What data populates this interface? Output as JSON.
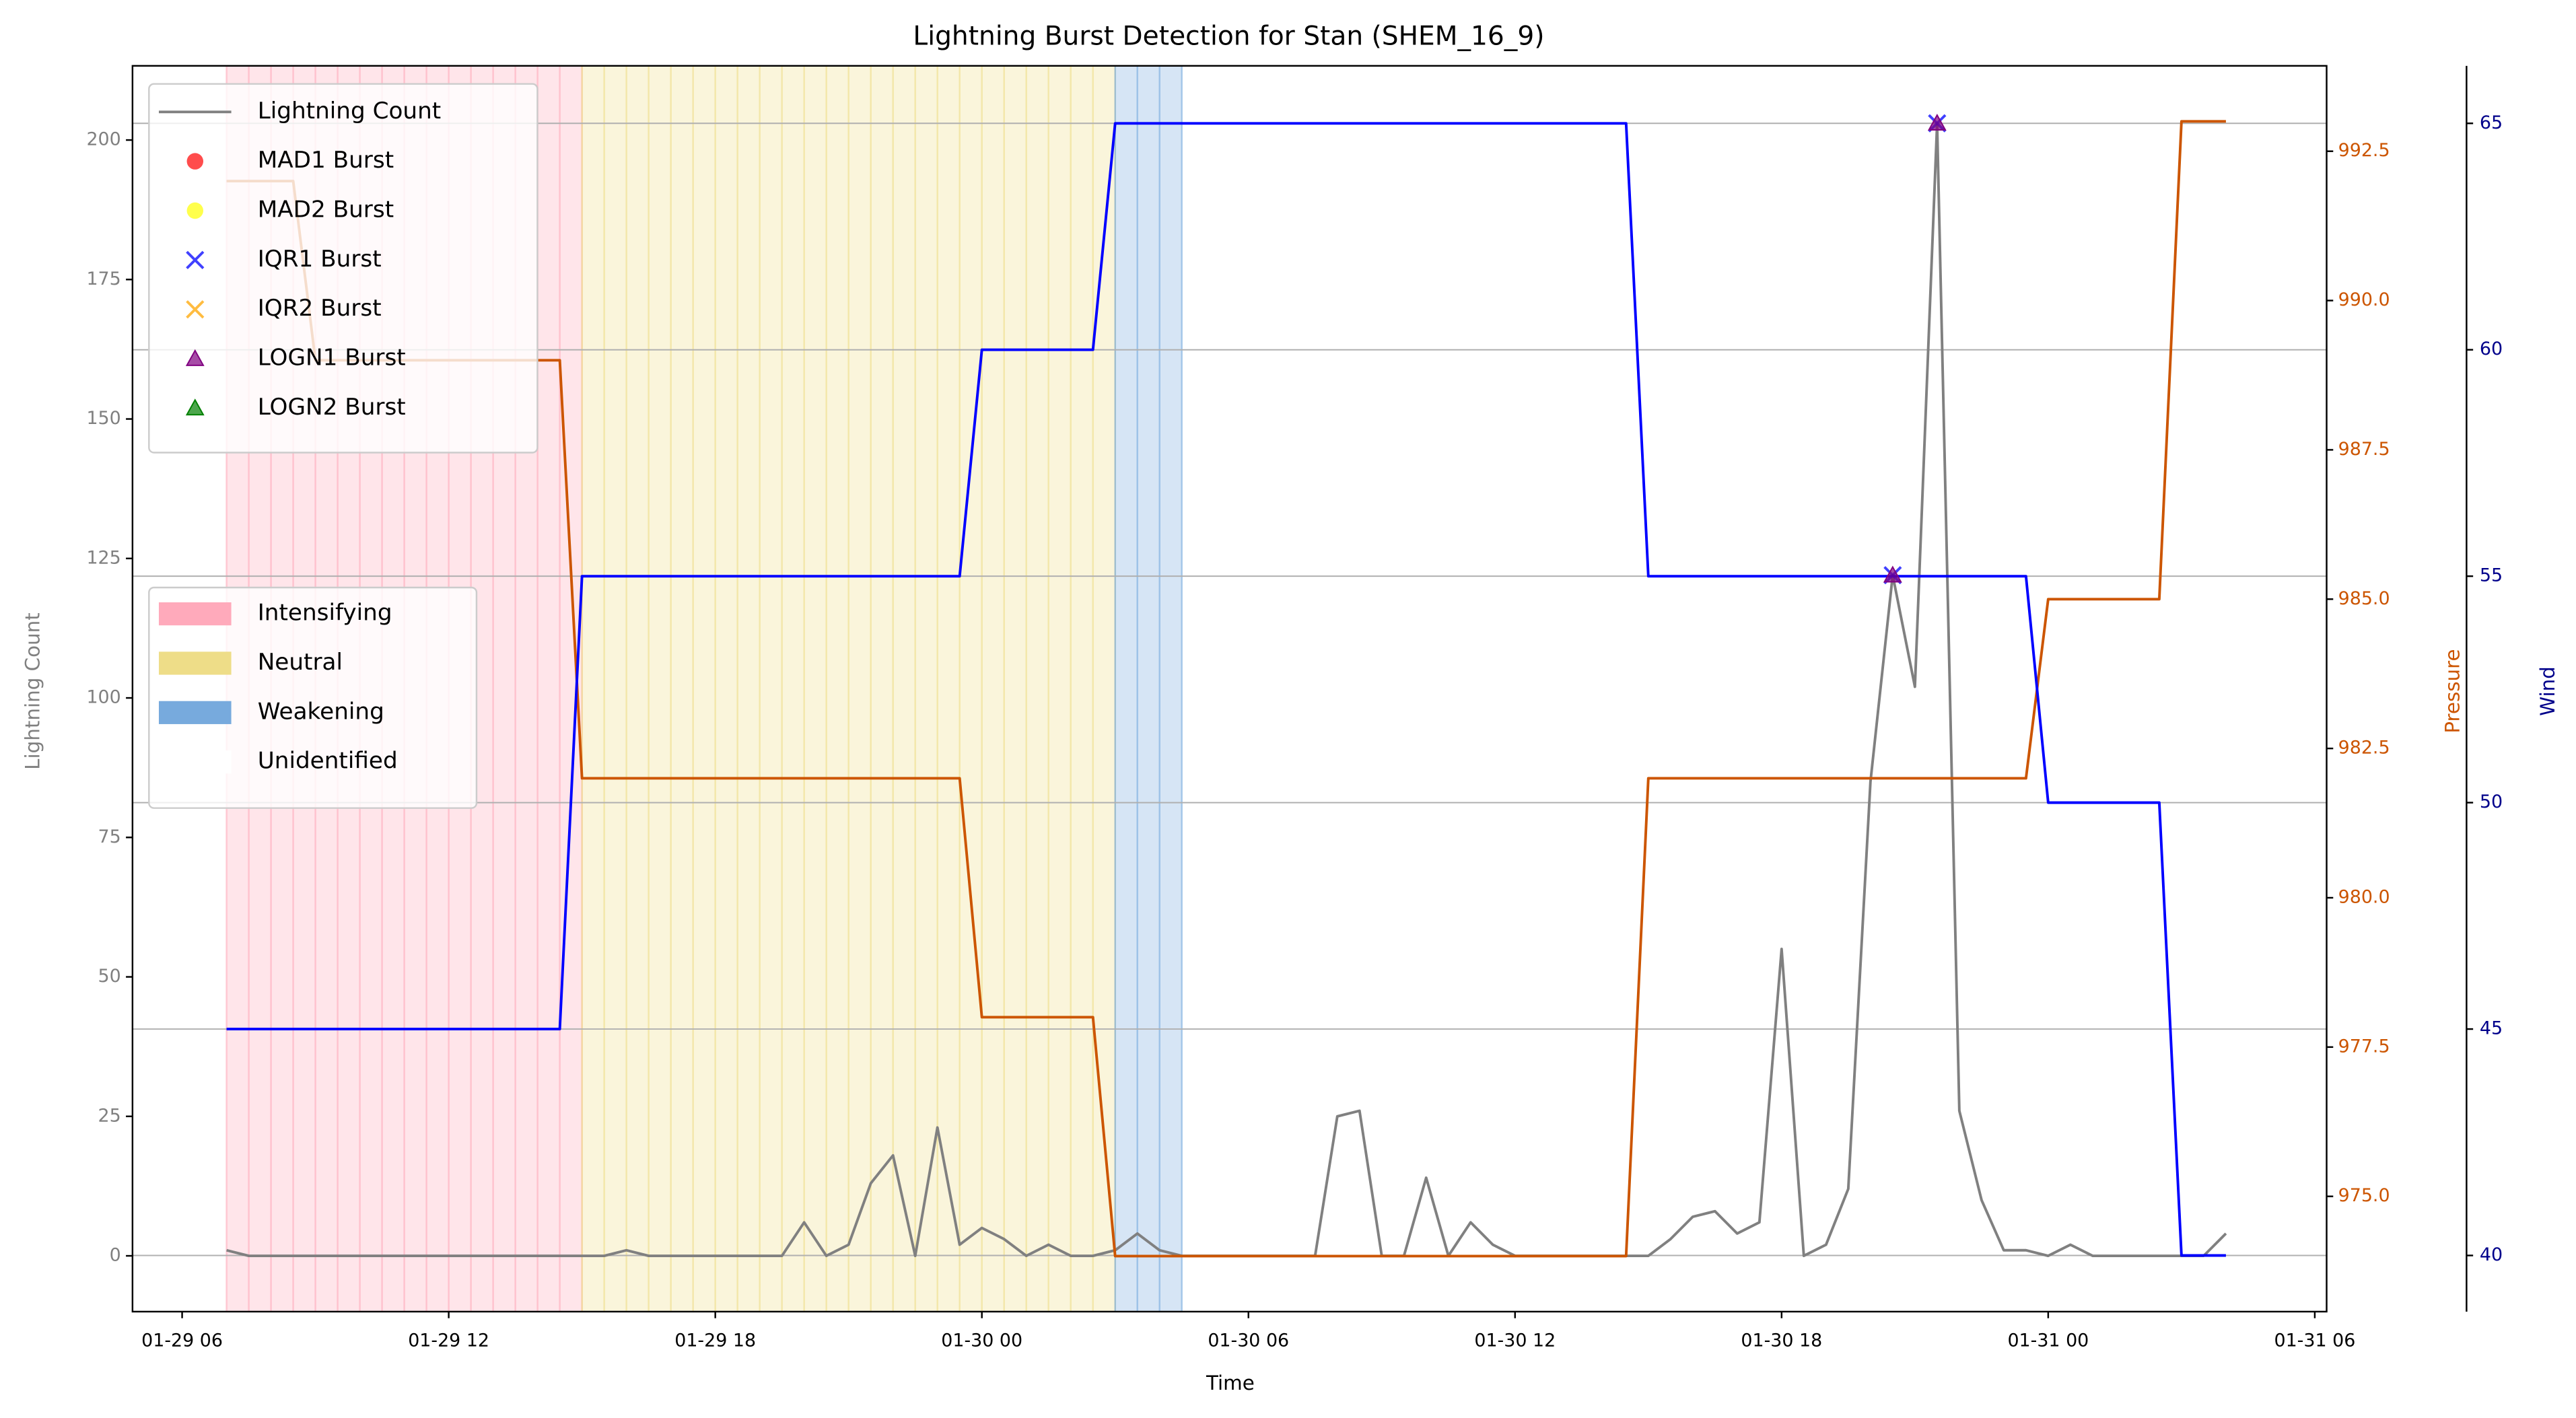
{
  "chart_data": {
    "type": "line",
    "title": "Lightning Burst Detection for Stan (SHEM_16_9)",
    "xlabel": "Time",
    "ylabel": "Lightning Count",
    "y2label": "Pressure",
    "y3label": "Wind",
    "x": [
      "01-29 07:00",
      "01-29 07:30",
      "01-29 08:00",
      "01-29 08:30",
      "01-29 09:00",
      "01-29 09:30",
      "01-29 10:00",
      "01-29 10:30",
      "01-29 11:00",
      "01-29 11:30",
      "01-29 12:00",
      "01-29 12:30",
      "01-29 13:00",
      "01-29 13:30",
      "01-29 14:00",
      "01-29 14:30",
      "01-29 15:00",
      "01-29 15:30",
      "01-29 16:00",
      "01-29 16:30",
      "01-29 17:00",
      "01-29 17:30",
      "01-29 18:00",
      "01-29 18:30",
      "01-29 19:00",
      "01-29 19:30",
      "01-29 20:00",
      "01-29 20:30",
      "01-29 21:00",
      "01-29 21:30",
      "01-29 22:00",
      "01-29 22:30",
      "01-29 23:00",
      "01-29 23:30",
      "01-30 00:00",
      "01-30 00:30",
      "01-30 01:00",
      "01-30 01:30",
      "01-30 02:00",
      "01-30 02:30",
      "01-30 03:00",
      "01-30 03:30",
      "01-30 04:00",
      "01-30 04:30",
      "01-30 05:00",
      "01-30 05:30",
      "01-30 06:00",
      "01-30 06:30",
      "01-30 07:00",
      "01-30 07:30",
      "01-30 08:00",
      "01-30 08:30",
      "01-30 09:00",
      "01-30 09:30",
      "01-30 10:00",
      "01-30 10:30",
      "01-30 11:00",
      "01-30 11:30",
      "01-30 12:00",
      "01-30 12:30",
      "01-30 13:00",
      "01-30 13:30",
      "01-30 14:00",
      "01-30 14:30",
      "01-30 15:00",
      "01-30 15:30",
      "01-30 16:00",
      "01-30 16:30",
      "01-30 17:00",
      "01-30 17:30",
      "01-30 18:00",
      "01-30 18:30",
      "01-30 19:00",
      "01-30 19:30",
      "01-30 20:00",
      "01-30 20:30",
      "01-30 21:00",
      "01-30 21:30",
      "01-30 22:00",
      "01-30 22:30",
      "01-30 23:00",
      "01-30 23:30",
      "01-31 00:00",
      "01-31 00:30",
      "01-31 01:00",
      "01-31 01:30",
      "01-31 02:00",
      "01-31 02:30",
      "01-31 03:00",
      "01-31 03:30",
      "01-31 04:00"
    ],
    "series": [
      {
        "name": "Lightning Count",
        "color": "#808080",
        "values": [
          1,
          0,
          0,
          0,
          0,
          0,
          0,
          0,
          0,
          0,
          0,
          0,
          0,
          0,
          0,
          0,
          0,
          0,
          1,
          0,
          0,
          0,
          0,
          0,
          0,
          0,
          6,
          0,
          2,
          13,
          18,
          0,
          23,
          2,
          5,
          3,
          0,
          2,
          0,
          0,
          1,
          4,
          1,
          0,
          0,
          0,
          0,
          0,
          0,
          0,
          25,
          26,
          0,
          0,
          14,
          0,
          6,
          2,
          0,
          0,
          0,
          0,
          0,
          0,
          0,
          3,
          7,
          8,
          4,
          6,
          55,
          0,
          2,
          12,
          85,
          122,
          102,
          203,
          26,
          10,
          1,
          1,
          0,
          2,
          0,
          0,
          0,
          0,
          0,
          0,
          4
        ]
      }
    ],
    "pressure": {
      "color": "#cc5500",
      "values": [
        992,
        992,
        992,
        992,
        989,
        989,
        989,
        989,
        989,
        989,
        989,
        989,
        989,
        989,
        989,
        989,
        982,
        982,
        982,
        982,
        982,
        982,
        982,
        982,
        982,
        982,
        982,
        982,
        982,
        982,
        982,
        982,
        982,
        982,
        978,
        978,
        978,
        978,
        978,
        978,
        974,
        974,
        974,
        974,
        974,
        974,
        974,
        974,
        974,
        974,
        974,
        974,
        974,
        974,
        974,
        974,
        974,
        974,
        974,
        974,
        974,
        974,
        974,
        974,
        982,
        982,
        982,
        982,
        982,
        982,
        982,
        982,
        982,
        982,
        982,
        982,
        982,
        982,
        982,
        982,
        982,
        982,
        985,
        985,
        985,
        985,
        985,
        985,
        993,
        993,
        993
      ]
    },
    "wind": {
      "color": "#0000ff",
      "axis_color": "#00008b",
      "values": [
        45,
        45,
        45,
        45,
        45,
        45,
        45,
        45,
        45,
        45,
        45,
        45,
        45,
        45,
        45,
        45,
        55,
        55,
        55,
        55,
        55,
        55,
        55,
        55,
        55,
        55,
        55,
        55,
        55,
        55,
        55,
        55,
        55,
        55,
        60,
        60,
        60,
        60,
        60,
        60,
        65,
        65,
        65,
        65,
        65,
        65,
        65,
        65,
        65,
        65,
        65,
        65,
        65,
        65,
        65,
        65,
        65,
        65,
        65,
        65,
        65,
        65,
        65,
        65,
        55,
        55,
        55,
        55,
        55,
        55,
        55,
        55,
        55,
        55,
        55,
        55,
        55,
        55,
        55,
        55,
        55,
        55,
        50,
        50,
        50,
        50,
        50,
        50,
        40,
        40,
        40
      ]
    },
    "bursts": [
      {
        "name": "MAD1 Burst",
        "color": "#ff0000",
        "marker": "circle",
        "x": [],
        "values": []
      },
      {
        "name": "MAD2 Burst",
        "color": "#ffff00",
        "marker": "circle",
        "x": [],
        "values": []
      },
      {
        "name": "IQR1 Burst",
        "color": "#0000ff",
        "marker": "x",
        "x": [
          "01-30 20:30",
          "01-30 21:30"
        ],
        "values": [
          122,
          203
        ]
      },
      {
        "name": "IQR2 Burst",
        "color": "#ffa500",
        "marker": "x",
        "x": [],
        "values": []
      },
      {
        "name": "LOGN1 Burst",
        "color": "#800080",
        "marker": "triangle",
        "x": [
          "01-30 20:30",
          "01-30 21:30"
        ],
        "values": [
          122,
          203
        ]
      },
      {
        "name": "LOGN2 Burst",
        "color": "#008000",
        "marker": "triangle",
        "x": [],
        "values": []
      }
    ],
    "phases": [
      {
        "name": "Intensifying",
        "color": "#ffaabb",
        "start": "01-29 07:00",
        "end": "01-29 15:00"
      },
      {
        "name": "Neutral",
        "color": "#eedd88",
        "start": "01-29 15:00",
        "end": "01-30 03:00"
      },
      {
        "name": "Weakening",
        "color": "#77aadd",
        "start": "01-30 03:00",
        "end": "01-30 04:30"
      },
      {
        "name": "Unidentified",
        "color": "#ffffff"
      }
    ],
    "xlim": [
      "01-29 04:53",
      "01-31 06:16"
    ],
    "xticks": [
      {
        "value": "01-29 06:00",
        "label": "01-29 06"
      },
      {
        "value": "01-29 12:00",
        "label": "01-29 12"
      },
      {
        "value": "01-29 18:00",
        "label": "01-29 18"
      },
      {
        "value": "01-30 00:00",
        "label": "01-30 00"
      },
      {
        "value": "01-30 06:00",
        "label": "01-30 06"
      },
      {
        "value": "01-30 12:00",
        "label": "01-30 12"
      },
      {
        "value": "01-30 18:00",
        "label": "01-30 18"
      },
      {
        "value": "01-31 00:00",
        "label": "01-31 00"
      },
      {
        "value": "01-31 06:00",
        "label": "01-31 06"
      }
    ],
    "ylim": [
      -10,
      213.3
    ],
    "yticks": [
      0,
      25,
      50,
      75,
      100,
      125,
      150,
      175,
      200
    ],
    "y2lim": [
      973.07,
      993.93
    ],
    "y2ticks": [
      {
        "value": 975,
        "label": "975.0"
      },
      977.5,
      {
        "value": 980,
        "label": "980.0"
      },
      982.5,
      {
        "value": 985,
        "label": "985.0"
      },
      987.5,
      {
        "value": 990,
        "label": "990.0"
      },
      992.5
    ],
    "y3lim": [
      38.76,
      66.27
    ],
    "y3ticks": [
      40,
      45,
      50,
      55,
      60,
      65
    ],
    "grid": true
  }
}
